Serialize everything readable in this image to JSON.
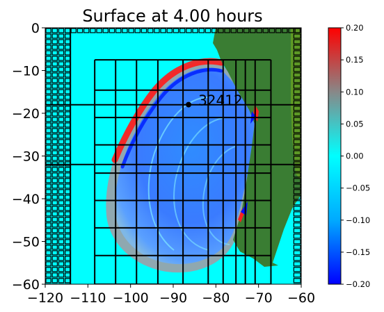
{
  "chart_data": {
    "type": "heatmap",
    "title": "Surface at 4.00 hours",
    "xlabel": "",
    "ylabel": "",
    "xlim": [
      -120,
      -60
    ],
    "ylim": [
      -60,
      0
    ],
    "x_ticks": [
      "−120",
      "−110",
      "−100",
      "−90",
      "−80",
      "−70",
      "−60"
    ],
    "x_tick_values": [
      -120,
      -110,
      -100,
      -90,
      -80,
      -70,
      -60
    ],
    "y_ticks": [
      "0",
      "−10",
      "−20",
      "−30",
      "−40",
      "−50",
      "−60"
    ],
    "y_tick_values": [
      0,
      -10,
      -20,
      -30,
      -40,
      -50,
      -60
    ],
    "colorbar": {
      "min": -0.2,
      "max": 0.2,
      "ticks": [
        "0.20",
        "0.15",
        "0.10",
        "0.05",
        "0.00",
        "−0.05",
        "−0.10",
        "−0.15",
        "−0.20"
      ],
      "tick_values": [
        0.2,
        0.15,
        0.1,
        0.05,
        0.0,
        -0.05,
        -0.1,
        -0.15,
        -0.2
      ],
      "colors": [
        "#0000ff",
        "#00aaff",
        "#00ffff",
        "#888888",
        "#ff0000"
      ]
    },
    "gauge": {
      "label": "32412",
      "lon": -86.4,
      "lat": -17.98
    },
    "grid_lon": [
      -108.4,
      -103.5,
      -98.6,
      -93.6,
      -87.7,
      -81.8,
      -78.3,
      -75.3,
      -73.1,
      -70.8,
      -67.1
    ],
    "grid_lat": [
      -7.5,
      -14.6,
      -21.0,
      -27.4,
      -34.0,
      -40.4,
      -46.8,
      -53.3,
      -60
    ],
    "coarse_lon": [
      -114.1
    ],
    "coarse_lat": [
      -18.0,
      -32.0
    ],
    "colors": {
      "background": "#00ffff",
      "land": "#3a7d33",
      "wave_pos": "#ff0000",
      "wave_neg": "#0044ff",
      "grid_line": "#000000"
    }
  }
}
